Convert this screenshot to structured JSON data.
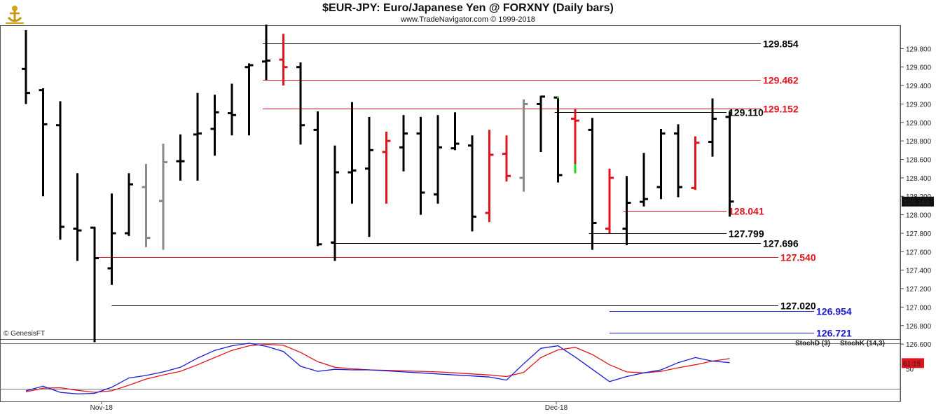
{
  "header": {
    "title": "$EUR-JPY:  Euro/Japanese Yen @ FORXNY  (Daily bars)",
    "subtitle": "www.TradeNavigator.com © 1999-2018"
  },
  "watermark": "© GenesisFT",
  "chart_data": [
    {
      "type": "ohlc",
      "title": "$EUR-JPY:  Euro/Japanese Yen @ FORXNY  (Daily bars)",
      "ylim": [
        126.44,
        130.06
      ],
      "y_tick_labels": [
        "129.800",
        "129.600",
        "129.400",
        "129.200",
        "129.000",
        "128.800",
        "128.600",
        "128.400",
        "128.200",
        "128.000",
        "127.800",
        "127.600",
        "127.400",
        "127.200",
        "127.000",
        "126.800",
        "126.600"
      ],
      "x_tick_labels": [
        "Nov-18",
        "Dec-18"
      ],
      "last_price_label": "128.143",
      "bar_colors": {
        "up": "#000000",
        "down": "#000000",
        "red": "#e0141e",
        "gray": "#8a8a8a",
        "green": "#1ed71e"
      },
      "bars": [
        {
          "o": 129.58,
          "h": 130.0,
          "l": 129.2,
          "c": 129.32,
          "color": "black"
        },
        {
          "o": 129.35,
          "h": 129.37,
          "l": 128.2,
          "c": 128.98,
          "color": "black"
        },
        {
          "o": 128.97,
          "h": 129.23,
          "l": 127.73,
          "c": 127.87,
          "color": "black"
        },
        {
          "o": 127.85,
          "h": 128.45,
          "l": 127.5,
          "c": 127.83,
          "color": "black"
        },
        {
          "o": 127.86,
          "h": 127.87,
          "l": 126.62,
          "c": 127.53,
          "color": "black"
        },
        {
          "o": 127.42,
          "h": 128.23,
          "l": 127.24,
          "c": 127.8,
          "color": "black"
        },
        {
          "o": 127.8,
          "h": 128.45,
          "l": 127.77,
          "c": 128.33,
          "color": "black"
        },
        {
          "o": 128.3,
          "h": 128.55,
          "l": 127.65,
          "c": 127.75,
          "color": "gray"
        },
        {
          "o": 128.15,
          "h": 128.77,
          "l": 127.62,
          "c": 128.57,
          "color": "gray"
        },
        {
          "o": 128.58,
          "h": 128.87,
          "l": 128.37,
          "c": 128.58,
          "color": "black"
        },
        {
          "o": 128.87,
          "h": 129.32,
          "l": 128.37,
          "c": 128.88,
          "color": "black"
        },
        {
          "o": 128.93,
          "h": 129.3,
          "l": 128.64,
          "c": 129.11,
          "color": "black"
        },
        {
          "o": 129.1,
          "h": 129.42,
          "l": 128.86,
          "c": 129.08,
          "color": "black"
        },
        {
          "o": 129.6,
          "h": 129.64,
          "l": 128.86,
          "c": 129.62,
          "color": "black"
        },
        {
          "o": 129.66,
          "h": 130.06,
          "l": 129.46,
          "c": 129.67,
          "color": "black"
        },
        {
          "o": 129.68,
          "h": 129.96,
          "l": 129.4,
          "c": 129.6,
          "color": "red"
        },
        {
          "o": 129.6,
          "h": 129.65,
          "l": 128.76,
          "c": 128.97,
          "color": "black"
        },
        {
          "o": 128.92,
          "h": 129.12,
          "l": 127.66,
          "c": 127.68,
          "color": "black"
        },
        {
          "o": 127.7,
          "h": 128.75,
          "l": 127.5,
          "c": 128.46,
          "color": "black"
        },
        {
          "o": 128.46,
          "h": 129.22,
          "l": 128.12,
          "c": 128.48,
          "color": "black"
        },
        {
          "o": 128.5,
          "h": 129.06,
          "l": 127.76,
          "c": 128.7,
          "color": "black"
        },
        {
          "o": 128.68,
          "h": 128.9,
          "l": 128.12,
          "c": 128.8,
          "color": "red"
        },
        {
          "o": 128.73,
          "h": 129.08,
          "l": 128.47,
          "c": 128.88,
          "color": "black"
        },
        {
          "o": 128.88,
          "h": 129.06,
          "l": 128.0,
          "c": 128.24,
          "color": "black"
        },
        {
          "o": 128.22,
          "h": 129.08,
          "l": 128.12,
          "c": 128.73,
          "color": "black"
        },
        {
          "o": 128.72,
          "h": 129.11,
          "l": 128.7,
          "c": 128.77,
          "color": "black"
        },
        {
          "o": 128.75,
          "h": 128.86,
          "l": 127.82,
          "c": 127.98,
          "color": "black"
        },
        {
          "o": 128.02,
          "h": 128.92,
          "l": 127.92,
          "c": 128.65,
          "color": "red"
        },
        {
          "o": 128.66,
          "h": 128.86,
          "l": 128.36,
          "c": 128.42,
          "color": "red"
        },
        {
          "o": 128.4,
          "h": 129.25,
          "l": 128.25,
          "c": 129.2,
          "color": "gray"
        },
        {
          "o": 129.2,
          "h": 129.29,
          "l": 128.68,
          "c": 129.28,
          "color": "black"
        },
        {
          "o": 129.27,
          "h": 129.28,
          "l": 128.35,
          "c": 128.43,
          "color": "black"
        },
        {
          "o": 129.04,
          "h": 129.15,
          "l": 128.45,
          "c": 129.02,
          "color": "red"
        },
        {
          "o": 128.92,
          "h": 129.05,
          "l": 127.62,
          "c": 127.91,
          "color": "black"
        },
        {
          "o": 127.85,
          "h": 128.5,
          "l": 127.8,
          "c": 128.4,
          "color": "red"
        },
        {
          "o": 127.85,
          "h": 128.42,
          "l": 127.67,
          "c": 128.13,
          "color": "black"
        },
        {
          "o": 128.14,
          "h": 128.67,
          "l": 128.09,
          "c": 128.17,
          "color": "black"
        },
        {
          "o": 128.3,
          "h": 128.93,
          "l": 128.17,
          "c": 128.88,
          "color": "black"
        },
        {
          "o": 128.88,
          "h": 128.98,
          "l": 128.19,
          "c": 128.3,
          "color": "black"
        },
        {
          "o": 128.29,
          "h": 128.85,
          "l": 128.27,
          "c": 128.78,
          "color": "red"
        },
        {
          "o": 128.79,
          "h": 129.26,
          "l": 128.63,
          "c": 129.04,
          "color": "black"
        },
        {
          "o": 129.06,
          "h": 129.12,
          "l": 127.98,
          "c": 128.143,
          "color": "black"
        }
      ],
      "green_segment": {
        "bar_index": 31,
        "high": 129.28,
        "low": 129.26
      },
      "green_segment2": {
        "bar_index": 32,
        "high": 128.55,
        "low": 128.45
      },
      "levels": [
        {
          "value": 129.854,
          "label": "129.854",
          "color": "#000000",
          "start_bar": 13.8
        },
        {
          "value": 129.462,
          "label": "129.462",
          "color": "#e0141e",
          "start_bar": 13.8
        },
        {
          "value": 129.152,
          "label": "129.152",
          "color": "#e0141e",
          "start_bar": 13.8
        },
        {
          "value": 129.11,
          "label": "129.110",
          "color": "#000000",
          "start_bar": 30.8
        },
        {
          "value": 128.041,
          "label": "128.041",
          "color": "#e0141e",
          "start_bar": 34.8
        },
        {
          "value": 127.799,
          "label": "127.799",
          "color": "#000000",
          "start_bar": 32.8
        },
        {
          "value": 127.696,
          "label": "127.696",
          "color": "#000000",
          "start_bar": 17.8
        },
        {
          "value": 127.54,
          "label": "127.540",
          "color": "#e0141e",
          "start_bar": 4.0
        },
        {
          "value": 127.02,
          "label": "127.020",
          "color": "#000000",
          "start_bar": 5.0
        },
        {
          "value": 126.954,
          "label": "126.954",
          "color": "#1a1ad6",
          "start_bar": 34.0
        },
        {
          "value": 126.721,
          "label": "126.721",
          "color": "#1a1ad6",
          "start_bar": 34.0
        }
      ]
    },
    {
      "type": "line",
      "title": "",
      "ylim": [
        0,
        100
      ],
      "y_tick_labels": [
        "50"
      ],
      "last_value_label": "61.15",
      "series": [
        {
          "name": "StochD (3)",
          "color": "#e0141e",
          "values": [
            5,
            12,
            13,
            8,
            4,
            7,
            18,
            30,
            38,
            45,
            58,
            72,
            86,
            95,
            98,
            96,
            82,
            64,
            53,
            50,
            48,
            47,
            46,
            45,
            44,
            42,
            40,
            38,
            35,
            43,
            72,
            87,
            92,
            78,
            58,
            44,
            42,
            45,
            52,
            58,
            65,
            70
          ]
        },
        {
          "name": "StochK (14,3)",
          "color": "#1a1ad6",
          "values": [
            7,
            16,
            4,
            1,
            2,
            14,
            32,
            37,
            44,
            53,
            71,
            86,
            95,
            100,
            94,
            84,
            55,
            45,
            49,
            48,
            48,
            46,
            44,
            42,
            40,
            38,
            36,
            34,
            28,
            60,
            90,
            95,
            73,
            49,
            25,
            35,
            42,
            48,
            62,
            72,
            65,
            62
          ]
        }
      ]
    }
  ]
}
